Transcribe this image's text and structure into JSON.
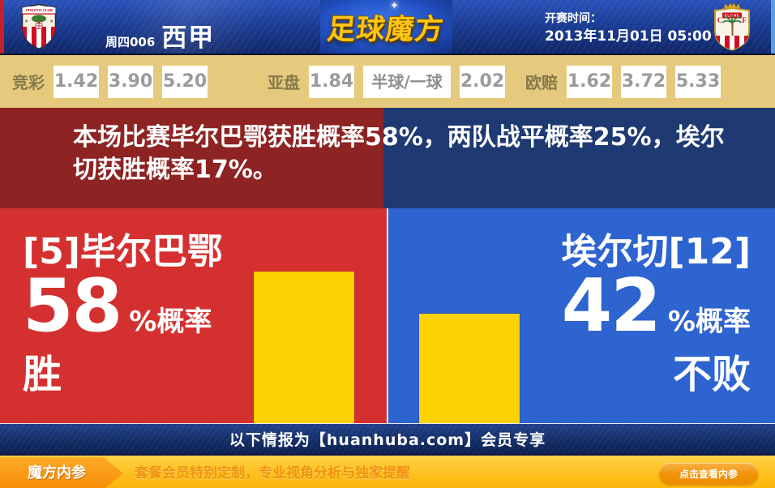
{
  "header": {
    "match_code": "周四006",
    "league": "西甲",
    "site_logo": "足球魔方",
    "kickoff_label": "开赛时间：",
    "kickoff_time": "2013年11月01日 05:00",
    "home_crest_text": "ATHLETIC CLUB",
    "away_crest_text": "ELCHE",
    "away_crest_letter_left": "C",
    "away_crest_letter_right": "F"
  },
  "odds": {
    "jingcai": {
      "label": "竞彩",
      "values": [
        "1.42",
        "3.90",
        "5.20"
      ]
    },
    "yapan": {
      "label": "亚盘",
      "home": "1.84",
      "handicap": "半球/一球",
      "away": "2.02"
    },
    "oupei": {
      "label": "欧赔",
      "values": [
        "1.62",
        "3.72",
        "5.33"
      ]
    }
  },
  "summary": {
    "text": "本场比赛毕尔巴鄂获胜概率58%，两队战平概率25%，埃尔切获胜概率17%。"
  },
  "home": {
    "team_line": "[5]毕尔巴鄂",
    "probability": "58",
    "prob_suffix": "%概率",
    "outcome": "胜"
  },
  "away": {
    "team_line": "埃尔切[12]",
    "probability": "42",
    "prob_suffix": "%概率",
    "outcome": "不败"
  },
  "members_bar": {
    "text": "以下情报为【huanhuba.com】会员专享"
  },
  "promo": {
    "badge": "魔方内参",
    "text": "套餐会员特别定制，专业视角分析与独家提醒",
    "button_label": "点击查看内参"
  },
  "chart_data": {
    "type": "bar",
    "categories": [
      "毕尔巴鄂",
      "埃尔切"
    ],
    "values": [
      58,
      42
    ],
    "unit": "%"
  },
  "colors": {
    "header_navy": "#1b3d96",
    "odds_bar_tan": "#e5c97c",
    "banner_red_dark": "#8e2323",
    "banner_navy_dark": "#1f3a72",
    "home_red": "#d43030",
    "away_blue": "#2e64d0",
    "bar_yellow": "#fdd203",
    "members_navy": "#142e68",
    "promo_yellow": "#fdbd16",
    "promo_orange": "#f78d05",
    "logo_gold": "#fec514"
  }
}
